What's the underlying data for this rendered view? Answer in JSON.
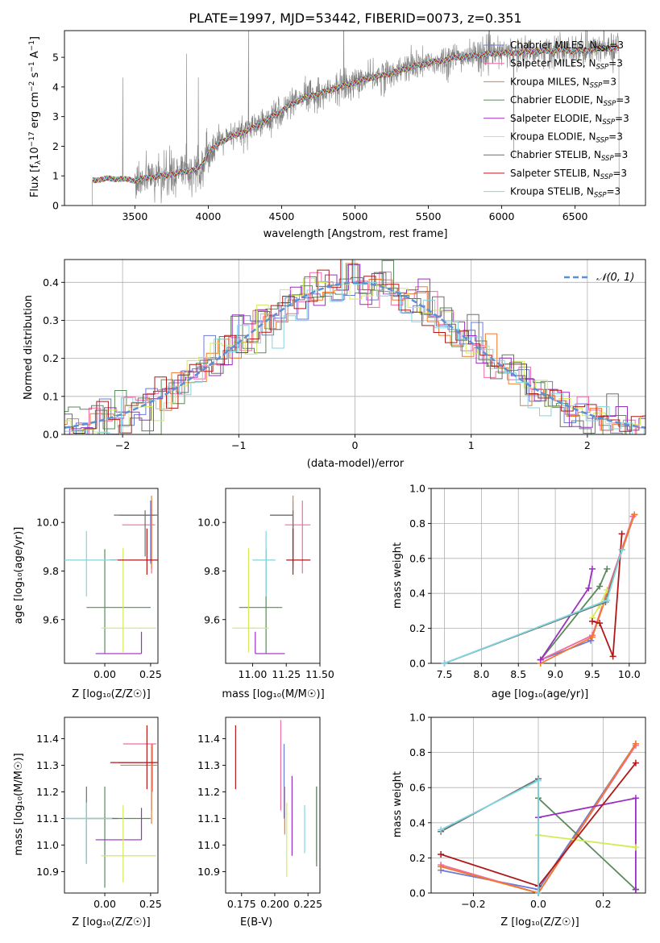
{
  "figure": {
    "title": "PLATE=1997, MJD=53442, FIBERID=0073, z=0.351"
  },
  "colors": {
    "Chabrier MILES": "#6a7bd8",
    "Salpeter MILES": "#f06aa6",
    "Kroupa MILES": "#f07a2a",
    "Chabrier ELODIE": "#5a8a5a",
    "Salpeter ELODIE": "#9a2fc0",
    "Kroupa ELODIE": "#d4ea5a",
    "Chabrier STELIB": "#6e6e6e",
    "Salpeter STELIB": "#b01818",
    "Kroupa STELIB": "#7fd6e0",
    "normal": "#5b8fd6"
  },
  "chart_data": [
    {
      "id": "spectrum",
      "type": "line",
      "xlabel": "wavelength [Angstrom, rest frame]",
      "ylabel_prefix": "Flux [f",
      "ylabel_rest": "10",
      "ylabel_units": "erg cm",
      "ylabel_end": "s",
      "ylabel_tail": "A",
      "xlim": [
        3020,
        6980
      ],
      "ylim": [
        0,
        5.9
      ],
      "xticks": [
        3500,
        4000,
        4500,
        5000,
        5500,
        6000,
        6500
      ],
      "yticks": [
        0,
        1,
        2,
        3,
        4,
        5
      ],
      "data_color": "#808080",
      "data_start": 3210,
      "data_end": 6800,
      "continuum": {
        "x": [
          3210,
          3300,
          3400,
          3500,
          3600,
          3700,
          3800,
          3900,
          3950,
          4000,
          4100,
          4200,
          4300,
          4400,
          4500,
          4600,
          4700,
          4800,
          4900,
          5000,
          5100,
          5200,
          5300,
          5400,
          5500,
          5600,
          5700,
          5800,
          5900,
          6000,
          6100,
          6200,
          6300,
          6400,
          6500,
          6600,
          6700,
          6800
        ],
        "y": [
          0.85,
          0.9,
          0.9,
          0.85,
          0.95,
          1.0,
          1.1,
          1.2,
          1.3,
          1.8,
          2.2,
          2.4,
          2.6,
          2.9,
          3.2,
          3.5,
          3.7,
          3.85,
          4.0,
          4.15,
          4.3,
          4.4,
          4.55,
          4.7,
          4.8,
          4.9,
          5.0,
          5.05,
          5.1,
          5.15,
          5.15,
          5.2,
          5.2,
          5.25,
          5.2,
          5.25,
          5.3,
          5.3
        ]
      },
      "legend": [
        "Chabrier MILES, N_SSP=3",
        "Salpeter MILES, N_SSP=3",
        "Kroupa MILES, N_SSP=3",
        "Chabrier ELODIE, N_SSP=3",
        "Salpeter ELODIE, N_SSP=3",
        "Kroupa ELODIE, N_SSP=3",
        "Chabrier STELIB, N_SSP=3",
        "Salpeter STELIB, N_SSP=3",
        "Kroupa STELIB, N_SSP=3"
      ],
      "legend_placement": "top-right"
    },
    {
      "id": "residuals",
      "type": "histogram",
      "xlabel": "(data-model)/error",
      "ylabel": "Normed distribution",
      "xlim": [
        -2.5,
        2.5
      ],
      "ylim": [
        0,
        0.46
      ],
      "xticks": [
        -2,
        -1,
        0,
        1,
        2
      ],
      "yticks": [
        0.0,
        0.1,
        0.2,
        0.3,
        0.4
      ],
      "grid": true,
      "bin_width": 0.1,
      "reference_label": "𝒩(0, 1)",
      "legend_placement": "top-right"
    },
    {
      "id": "age_vs_Z",
      "type": "errorbar",
      "xlabel": "Z [log₁₀(Z/Z☉)]",
      "ylabel": "age  [log₁₀(age/yr)]",
      "xlim": [
        -0.22,
        0.29
      ],
      "ylim": [
        9.42,
        10.14
      ],
      "xticks": [
        0.0,
        0.25
      ],
      "xtick_labels": [
        "0.00",
        "0.25"
      ],
      "yticks": [
        9.6,
        9.8,
        10.0
      ],
      "ytick_labels": [
        "9.6",
        "9.8",
        "10.0"
      ],
      "points": [
        {
          "model": "Chabrier MILES",
          "x": 0.25,
          "xerr": [
            0.17,
            0.02
          ],
          "y": 10.03,
          "yerr": [
            0.2,
            0.06
          ]
        },
        {
          "model": "Salpeter MILES",
          "x": 0.255,
          "xerr": [
            0.16,
            0.02
          ],
          "y": 9.99,
          "yerr": [
            0.2,
            0.1
          ]
        },
        {
          "model": "Kroupa MILES",
          "x": 0.255,
          "xerr": [
            0.17,
            0.02
          ],
          "y": 10.03,
          "yerr": [
            0.22,
            0.08
          ]
        },
        {
          "model": "Chabrier ELODIE",
          "x": 0.0,
          "xerr": [
            0.1,
            0.25
          ],
          "y": 9.65,
          "yerr": [
            0.19,
            0.24
          ]
        },
        {
          "model": "Salpeter ELODIE",
          "x": 0.2,
          "xerr": [
            0.25,
            0.0
          ],
          "y": 9.46,
          "yerr": [
            0.0,
            0.09
          ]
        },
        {
          "model": "Kroupa ELODIE",
          "x": 0.1,
          "xerr": [
            0.12,
            0.18
          ],
          "y": 9.565,
          "yerr": [
            0.1,
            0.33
          ]
        },
        {
          "model": "Chabrier STELIB",
          "x": 0.22,
          "xerr": [
            0.17,
            0.07
          ],
          "y": 10.03,
          "yerr": [
            0.17,
            0.02
          ]
        },
        {
          "model": "Salpeter STELIB",
          "x": 0.23,
          "xerr": [
            0.2,
            0.07
          ],
          "y": 9.845,
          "yerr": [
            0.06,
            0.13
          ]
        },
        {
          "model": "Kroupa STELIB",
          "x": -0.1,
          "xerr": [
            0.12,
            0.17
          ],
          "y": 9.845,
          "yerr": [
            0.15,
            0.12
          ]
        }
      ]
    },
    {
      "id": "age_vs_mass",
      "type": "errorbar",
      "xlabel": "mass [log₁₀(M/M☉)]",
      "ylabel": "",
      "xlim": [
        10.8,
        11.5
      ],
      "ylim": [
        9.42,
        10.14
      ],
      "xticks": [
        11.0,
        11.25,
        11.5
      ],
      "xtick_labels": [
        "11.00",
        "11.25",
        "11.50"
      ],
      "yticks": [
        9.6,
        9.8,
        10.0
      ],
      "ytick_labels": [
        "9.6",
        "9.8",
        "10.0"
      ],
      "points": [
        {
          "model": "Chabrier MILES",
          "x": 11.3,
          "xerr": [
            0.17,
            0.0
          ],
          "y": 10.03,
          "yerr": [
            0.2,
            0.06
          ]
        },
        {
          "model": "Salpeter MILES",
          "x": 11.37,
          "xerr": [
            0.13,
            0.06
          ],
          "y": 9.99,
          "yerr": [
            0.2,
            0.1
          ]
        },
        {
          "model": "Kroupa MILES",
          "x": 11.3,
          "xerr": [
            0.17,
            0.0
          ],
          "y": 10.03,
          "yerr": [
            0.22,
            0.08
          ]
        },
        {
          "model": "Chabrier ELODIE",
          "x": 11.1,
          "xerr": [
            0.2,
            0.12
          ],
          "y": 9.65,
          "yerr": [
            0.19,
            0.24
          ]
        },
        {
          "model": "Salpeter ELODIE",
          "x": 11.02,
          "xerr": [
            0.0,
            0.22
          ],
          "y": 9.46,
          "yerr": [
            0.0,
            0.09
          ]
        },
        {
          "model": "Kroupa ELODIE",
          "x": 10.97,
          "xerr": [
            0.12,
            0.15
          ],
          "y": 9.565,
          "yerr": [
            0.1,
            0.33
          ]
        },
        {
          "model": "Chabrier STELIB",
          "x": 11.3,
          "xerr": [
            0.17,
            0.0
          ],
          "y": 10.03,
          "yerr": [
            0.17,
            0.02
          ]
        },
        {
          "model": "Salpeter STELIB",
          "x": 11.3,
          "xerr": [
            0.05,
            0.13
          ],
          "y": 9.845,
          "yerr": [
            0.06,
            0.13
          ]
        },
        {
          "model": "Kroupa STELIB",
          "x": 11.1,
          "xerr": [
            0.1,
            0.07
          ],
          "y": 9.845,
          "yerr": [
            0.15,
            0.12
          ]
        }
      ]
    },
    {
      "id": "weight_vs_age",
      "type": "line",
      "xlabel": "age  [log₁₀(age/yr)]",
      "ylabel": "mass weight",
      "xlim": [
        7.32,
        10.22
      ],
      "ylim": [
        0,
        1.0
      ],
      "xticks": [
        7.5,
        8.0,
        8.5,
        9.0,
        9.5,
        10.0
      ],
      "xtick_labels": [
        "7.5",
        "8.0",
        "8.5",
        "9.0",
        "9.5",
        "10.0"
      ],
      "yticks": [
        0.0,
        0.2,
        0.4,
        0.6,
        0.8,
        1.0
      ],
      "ytick_labels": [
        "0.0",
        "0.2",
        "0.4",
        "0.6",
        "0.8",
        "1.0"
      ],
      "grid": true,
      "series": [
        {
          "model": "Chabrier MILES",
          "x": [
            8.8,
            9.48,
            10.07
          ],
          "y": [
            0.02,
            0.13,
            0.85
          ]
        },
        {
          "model": "Salpeter MILES",
          "x": [
            8.8,
            9.5,
            10.05
          ],
          "y": [
            0.02,
            0.16,
            0.84
          ]
        },
        {
          "model": "Kroupa MILES",
          "x": [
            8.8,
            9.5,
            10.07
          ],
          "y": [
            0.0,
            0.15,
            0.85
          ]
        },
        {
          "model": "Chabrier ELODIE",
          "x": [
            8.8,
            9.6,
            9.7
          ],
          "y": [
            0.02,
            0.44,
            0.54
          ]
        },
        {
          "model": "Salpeter ELODIE",
          "x": [
            8.8,
            9.45,
            9.5
          ],
          "y": [
            0.02,
            0.43,
            0.54
          ]
        },
        {
          "model": "Kroupa ELODIE",
          "x": [
            9.5,
            9.6,
            9.7
          ],
          "y": [
            0.26,
            0.33,
            0.42
          ]
        },
        {
          "model": "Chabrier STELIB",
          "x": [
            7.5,
            9.68,
            9.9
          ],
          "y": [
            0.0,
            0.35,
            0.65
          ]
        },
        {
          "model": "Salpeter STELIB",
          "x": [
            9.5,
            9.6,
            9.78,
            9.9
          ],
          "y": [
            0.24,
            0.23,
            0.04,
            0.74
          ]
        },
        {
          "model": "Kroupa STELIB",
          "x": [
            7.5,
            9.7,
            9.9
          ],
          "y": [
            0.0,
            0.36,
            0.65
          ]
        }
      ]
    },
    {
      "id": "mass_vs_Z",
      "type": "errorbar",
      "xlabel": "Z [log₁₀(Z/Z☉)]",
      "ylabel": "mass [log₁₀(M/M☉)]",
      "xlim": [
        -0.22,
        0.29
      ],
      "ylim": [
        10.82,
        11.48
      ],
      "xticks": [
        0.0,
        0.25
      ],
      "xtick_labels": [
        "0.00",
        "0.25"
      ],
      "yticks": [
        10.9,
        11.0,
        11.1,
        11.2,
        11.3,
        11.4
      ],
      "ytick_labels": [
        "10.9",
        "11.0",
        "11.1",
        "11.2",
        "11.3",
        "11.4"
      ],
      "points": [
        {
          "model": "Chabrier MILES",
          "x": 0.255,
          "xerr": [
            0.18,
            0.02
          ],
          "y": 11.31,
          "yerr": [
            0.18,
            0.06
          ]
        },
        {
          "model": "Salpeter MILES",
          "x": 0.26,
          "xerr": [
            0.16,
            0.02
          ],
          "y": 11.38,
          "yerr": [
            0.18,
            0.0
          ]
        },
        {
          "model": "Kroupa MILES",
          "x": 0.255,
          "xerr": [
            0.17,
            0.03
          ],
          "y": 11.3,
          "yerr": [
            0.22,
            0.08
          ]
        },
        {
          "model": "Chabrier ELODIE",
          "x": 0.0,
          "xerr": [
            0.1,
            0.25
          ],
          "y": 11.1,
          "yerr": [
            0.26,
            0.12
          ]
        },
        {
          "model": "Salpeter ELODIE",
          "x": 0.2,
          "xerr": [
            0.25,
            0.0
          ],
          "y": 11.02,
          "yerr": [
            0.0,
            0.12
          ]
        },
        {
          "model": "Kroupa ELODIE",
          "x": 0.1,
          "xerr": [
            0.12,
            0.18
          ],
          "y": 10.96,
          "yerr": [
            0.1,
            0.19
          ]
        },
        {
          "model": "Chabrier STELIB",
          "x": -0.1,
          "xerr": [
            0.12,
            0.17
          ],
          "y": 11.1,
          "yerr": [
            0.17,
            0.12
          ]
        },
        {
          "model": "Salpeter STELIB",
          "x": 0.23,
          "xerr": [
            0.2,
            0.07
          ],
          "y": 11.31,
          "yerr": [
            0.1,
            0.14
          ]
        },
        {
          "model": "Kroupa STELIB",
          "x": -0.1,
          "xerr": [
            0.12,
            0.14
          ],
          "y": 11.1,
          "yerr": [
            0.17,
            0.06
          ]
        }
      ]
    },
    {
      "id": "mass_vs_ebv",
      "type": "errorbar",
      "xlabel": "E(B-V)",
      "ylabel": "",
      "xlim": [
        0.163,
        0.234
      ],
      "ylim": [
        10.82,
        11.48
      ],
      "xticks": [
        0.175,
        0.2,
        0.225
      ],
      "xtick_labels": [
        "0.175",
        "0.200",
        "0.225"
      ],
      "yticks": [
        10.9,
        11.0,
        11.1,
        11.2,
        11.3,
        11.4
      ],
      "ytick_labels": [
        "10.9",
        "11.0",
        "11.1",
        "11.2",
        "11.3",
        "11.4"
      ],
      "points": [
        {
          "model": "Salpeter STELIB",
          "x": 0.1705,
          "xerr": [
            0,
            0
          ],
          "y": 11.33,
          "yerr": [
            0.12,
            0.12
          ]
        },
        {
          "model": "Salpeter MILES",
          "x": 0.2045,
          "xerr": [
            0,
            0
          ],
          "y": 11.3,
          "yerr": [
            0.17,
            0.17
          ]
        },
        {
          "model": "Chabrier MILES",
          "x": 0.207,
          "xerr": [
            0,
            0
          ],
          "y": 11.24,
          "yerr": [
            0.14,
            0.14
          ]
        },
        {
          "model": "Kroupa MILES",
          "x": 0.2075,
          "xerr": [
            0,
            0
          ],
          "y": 11.13,
          "yerr": [
            0.09,
            0.09
          ]
        },
        {
          "model": "Kroupa ELODIE",
          "x": 0.209,
          "xerr": [
            0,
            0
          ],
          "y": 11.02,
          "yerr": [
            0.14,
            0.14
          ]
        },
        {
          "model": "Salpeter ELODIE",
          "x": 0.213,
          "xerr": [
            0,
            0
          ],
          "y": 11.11,
          "yerr": [
            0.15,
            0.15
          ]
        },
        {
          "model": "Kroupa STELIB",
          "x": 0.2225,
          "xerr": [
            0,
            0
          ],
          "y": 11.06,
          "yerr": [
            0.09,
            0.09
          ]
        },
        {
          "model": "Chabrier STELIB",
          "x": 0.2315,
          "xerr": [
            0,
            0
          ],
          "y": 11.07,
          "yerr": [
            0.15,
            0.15
          ]
        },
        {
          "model": "Chabrier ELODIE",
          "x": 0.2315,
          "xerr": [
            0,
            0
          ],
          "y": 11.08,
          "yerr": [
            0.14,
            0.14
          ]
        }
      ]
    },
    {
      "id": "weight_vs_Z",
      "type": "line",
      "xlabel": "Z [log₁₀(Z/Z☉)]",
      "ylabel": "mass weight",
      "xlim": [
        -0.33,
        0.33
      ],
      "ylim": [
        0,
        1.0
      ],
      "xticks": [
        -0.2,
        0.0,
        0.2
      ],
      "xtick_labels": [
        "−0.2",
        "0.0",
        "0.2"
      ],
      "yticks": [
        0.0,
        0.2,
        0.4,
        0.6,
        0.8,
        1.0
      ],
      "ytick_labels": [
        "0.0",
        "0.2",
        "0.4",
        "0.6",
        "0.8",
        "1.0"
      ],
      "grid": true,
      "series": [
        {
          "model": "Chabrier MILES",
          "x": [
            -0.3,
            0.0,
            0.3
          ],
          "y": [
            0.13,
            0.02,
            0.85
          ]
        },
        {
          "model": "Salpeter MILES",
          "x": [
            -0.3,
            0.0,
            0.3
          ],
          "y": [
            0.16,
            0.0,
            0.84
          ]
        },
        {
          "model": "Kroupa MILES",
          "x": [
            -0.3,
            0.0,
            0.3
          ],
          "y": [
            0.15,
            0.0,
            0.85
          ]
        },
        {
          "model": "Chabrier ELODIE",
          "x": [
            0.0,
            0.3,
            0.3
          ],
          "y": [
            0.54,
            0.02,
            0.02
          ]
        },
        {
          "model": "Salpeter ELODIE",
          "x": [
            0.0,
            0.3,
            0.3
          ],
          "y": [
            0.43,
            0.54,
            0.02
          ]
        },
        {
          "model": "Kroupa ELODIE",
          "x": [
            0.0,
            0.3
          ],
          "y": [
            0.33,
            0.26
          ]
        },
        {
          "model": "Chabrier STELIB",
          "x": [
            -0.3,
            0.0,
            0.0
          ],
          "y": [
            0.35,
            0.65,
            0.0
          ]
        },
        {
          "model": "Salpeter STELIB",
          "x": [
            -0.3,
            0.0,
            0.3
          ],
          "y": [
            0.22,
            0.04,
            0.74
          ]
        },
        {
          "model": "Kroupa STELIB",
          "x": [
            -0.3,
            0.0,
            0.0
          ],
          "y": [
            0.36,
            0.64,
            0.0
          ]
        }
      ]
    }
  ]
}
